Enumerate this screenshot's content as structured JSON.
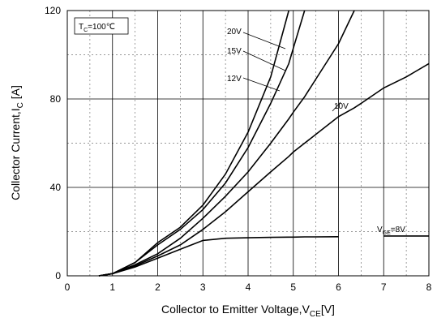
{
  "chart_data": {
    "type": "line",
    "x_label": [
      "Collector to Emitter Voltage,V",
      "CE",
      "[V]"
    ],
    "y_label": [
      "Collector Current,I",
      "C",
      " [A]"
    ],
    "condition": [
      "T",
      "C",
      "=100℃"
    ],
    "x": [
      0.7,
      1,
      1.5,
      2,
      2.5,
      3,
      3.5,
      4,
      4.5,
      4.9,
      5,
      5.25,
      5.5,
      6,
      6.35,
      6.5,
      7,
      7.5,
      8
    ],
    "series": [
      {
        "name": [
          "V",
          "GE",
          "=8V"
        ],
        "color": "#000000",
        "values": [
          0,
          1,
          4,
          8,
          12,
          16,
          17,
          17.2,
          17.4,
          17.5,
          17.5,
          17.6,
          17.6,
          17.7,
          null,
          null,
          18,
          18,
          18
        ]
      },
      {
        "name": "10V",
        "color": "#000000",
        "values": [
          0,
          1,
          4.5,
          9,
          14,
          21,
          29,
          38,
          47,
          54,
          56,
          60,
          64,
          72,
          76,
          78,
          85,
          90,
          96
        ]
      },
      {
        "name": "12V",
        "color": "#000000",
        "values": [
          0,
          1,
          5,
          10,
          17,
          26,
          36,
          47,
          60,
          71,
          74,
          81,
          89,
          105,
          120,
          null,
          null,
          null,
          null
        ]
      },
      {
        "name": "15V",
        "color": "#000000",
        "values": [
          0,
          1,
          6,
          14,
          21,
          30,
          42,
          58,
          78,
          96,
          103,
          120,
          null,
          null,
          null,
          null,
          null,
          null,
          null
        ]
      },
      {
        "name": "20V",
        "color": "#000000",
        "values": [
          0,
          1,
          6,
          15,
          22,
          32,
          46,
          65,
          90,
          120,
          null,
          null,
          null,
          null,
          null,
          null,
          null,
          null,
          null
        ]
      }
    ],
    "xlim": [
      0,
      8
    ],
    "xticks": [
      0,
      1,
      2,
      3,
      4,
      5,
      6,
      7,
      8
    ],
    "ylim": [
      0,
      120
    ],
    "yticks": [
      0,
      40,
      80,
      120
    ],
    "grid": true,
    "minor_grid": true
  }
}
